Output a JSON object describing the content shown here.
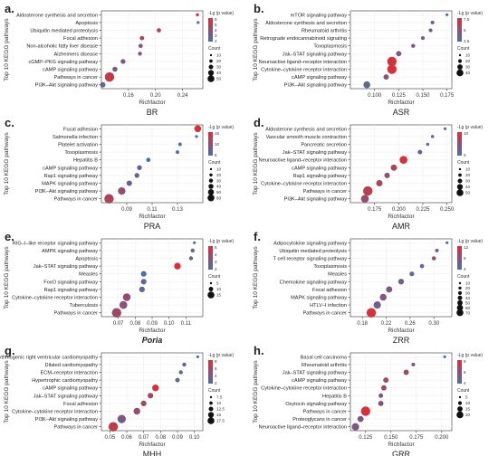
{
  "figure": {
    "shared": {
      "xlabel": "Richfactor",
      "ylabel": "Top 10 KEGG pathways",
      "legend_color_title": "-Lg (p value)",
      "legend_size_title": "Count",
      "color_low": "#4b6fa8",
      "color_high": "#d7303a"
    }
  },
  "chart_data": [
    {
      "type": "scatter",
      "panel_letter": "a.",
      "caption": "BR",
      "caption_italic": false,
      "xlim": [
        0.12,
        0.27
      ],
      "xticks": [
        "0.16",
        "0.20",
        "0.24"
      ],
      "xtick_values": [
        0.16,
        0.2,
        0.24
      ],
      "categories": [
        "Aldosterone synthesis and secretion",
        "Apoptosis",
        "Ubiquitin mediated proteolysis",
        "Focal adhesion",
        "Non-alcoholic fatty liver disease",
        "Alzheimers disease",
        "cGMP–PKG signaling pathway",
        "cAMP signaling pathway",
        "Pathways in cancer",
        "PI3K–Akt signaling pathway"
      ],
      "x": [
        0.262,
        0.263,
        0.205,
        0.18,
        0.178,
        0.177,
        0.152,
        0.14,
        0.132,
        0.122
      ],
      "neglog_p": [
        6.0,
        1.0,
        5.0,
        4.5,
        3.5,
        3.0,
        2.5,
        2.5,
        5.5,
        2.0
      ],
      "count": [
        5,
        3,
        15,
        15,
        15,
        12,
        20,
        22,
        60,
        25
      ],
      "color_ticks": [
        2.0,
        3.0,
        4.0,
        5.0,
        6.0
      ],
      "size_ticks": [
        10,
        20,
        30,
        40,
        50
      ]
    },
    {
      "type": "scatter",
      "panel_letter": "b.",
      "caption": "ASR",
      "caption_italic": false,
      "xlim": [
        0.075,
        0.18
      ],
      "xticks": [
        "0.100",
        "0.125",
        "0.150",
        "0.175"
      ],
      "xtick_values": [
        0.1,
        0.125,
        0.15,
        0.175
      ],
      "categories": [
        "mTOR signaling pathway",
        "Aldosterone synthesis and secretion",
        "Rheumatoid arthritis",
        "Retrograde endocannabinoid signaling",
        "Toxoplasmosis",
        "Jak–STAT signaling pathway",
        "Neuroactive ligand–receptor interaction",
        "Cytokine–cytokine receptor interaction",
        "cAMP signaling pathway",
        "PI3K–Akt signaling pathway"
      ],
      "x": [
        0.175,
        0.16,
        0.158,
        0.15,
        0.14,
        0.125,
        0.118,
        0.118,
        0.112,
        0.092
      ],
      "neglog_p": [
        1.0,
        3.0,
        3.0,
        3.0,
        3.5,
        3.5,
        8.0,
        8.0,
        4.0,
        2.0
      ],
      "count": [
        5,
        10,
        10,
        10,
        12,
        20,
        45,
        45,
        20,
        30
      ],
      "color_ticks": [
        2.5,
        5.0,
        7.5
      ],
      "size_ticks": [
        10,
        20,
        30,
        40
      ]
    },
    {
      "type": "scatter",
      "panel_letter": "c.",
      "caption": "PRA",
      "caption_italic": false,
      "xlim": [
        0.07,
        0.15
      ],
      "xticks": [
        "0.09",
        "0.11",
        "0.13"
      ],
      "xtick_values": [
        0.09,
        0.11,
        0.13
      ],
      "categories": [
        "Focal adhesion",
        "Salmonella infection",
        "Platelet activation",
        "Toxoplasmosis",
        "Hepatitis B",
        "cAMP signaling pathway",
        "Rap1 signaling pathway",
        "MAPK signaling pathway",
        "PI3K–Akt signaling pathway",
        "Pathways in cancer"
      ],
      "x": [
        0.146,
        0.145,
        0.132,
        0.13,
        0.107,
        0.1,
        0.098,
        0.092,
        0.086,
        0.076
      ],
      "neglog_p": [
        15.0,
        5.0,
        5.0,
        5.0,
        5.0,
        7.0,
        7.0,
        7.0,
        10.0,
        12.0
      ],
      "count": [
        40,
        10,
        15,
        15,
        20,
        25,
        25,
        30,
        45,
        60
      ],
      "color_ticks": [
        5,
        10,
        15
      ],
      "size_ticks": [
        10,
        20,
        30,
        40,
        50,
        60
      ]
    },
    {
      "type": "scatter",
      "panel_letter": "d.",
      "caption": "AMR",
      "caption_italic": false,
      "xlim": [
        0.15,
        0.255
      ],
      "xticks": [
        "0.175",
        "0.200",
        "0.225",
        "0.250"
      ],
      "xtick_values": [
        0.175,
        0.2,
        0.225,
        0.25
      ],
      "categories": [
        "Aldosterone synthesis and secretion",
        "Vascular smooth muscle contraction",
        "Pancreatic secretion",
        "Jak–STAT signaling pathway",
        "Neuroactive ligand–receptor interaction",
        "cAMP signaling pathway",
        "Rap1 signaling pathway",
        "Cytokine–cytokine receptor interaction",
        "Pathways in cancer",
        "PI3K–Akt signaling pathway"
      ],
      "x": [
        0.248,
        0.235,
        0.23,
        0.222,
        0.205,
        0.195,
        0.188,
        0.18,
        0.168,
        0.165
      ],
      "neglog_p": [
        5.0,
        6.0,
        3.0,
        5.0,
        12.0,
        9.0,
        7.0,
        9.0,
        10.0,
        8.0
      ],
      "count": [
        8,
        10,
        10,
        18,
        40,
        30,
        25,
        30,
        50,
        40
      ],
      "color_ticks": [
        5,
        10
      ],
      "size_ticks": [
        10,
        20,
        30,
        40,
        50
      ]
    },
    {
      "type": "scatter",
      "panel_letter": "e.",
      "caption": "Poria",
      "caption_italic": true,
      "xlim": [
        0.06,
        0.12
      ],
      "xticks": [
        "0.07",
        "0.08",
        "0.09",
        "0.10",
        "0.11"
      ],
      "xtick_values": [
        0.07,
        0.08,
        0.09,
        0.1,
        0.11
      ],
      "categories": [
        "RIG–I–like receptor signaling pathway",
        "AMPK signaling pathway",
        "Apoptosis",
        "Jak–STAT signaling pathway",
        "Measles",
        "FoxO signaling pathway",
        "Rap1 signaling pathway",
        "Cytokine–cytokine receptor interaction",
        "Tuberculosis",
        "Pathways in cancer"
      ],
      "x": [
        0.115,
        0.114,
        0.113,
        0.105,
        0.085,
        0.085,
        0.084,
        0.075,
        0.073,
        0.069
      ],
      "neglog_p": [
        2.0,
        2.5,
        3.0,
        5.5,
        2.0,
        2.5,
        2.5,
        4.0,
        3.5,
        4.0
      ],
      "count": [
        3,
        5,
        5,
        10,
        8,
        8,
        8,
        12,
        12,
        15
      ],
      "color_ticks": [
        2.0,
        3.0,
        4.0,
        5.0
      ],
      "size_ticks": [
        5,
        10,
        15
      ]
    },
    {
      "type": "scatter",
      "panel_letter": "f.",
      "caption": "ZRR",
      "caption_italic": false,
      "xlim": [
        0.16,
        0.33
      ],
      "xticks": [
        "0.18",
        "0.22",
        "0.26",
        "0.30"
      ],
      "xtick_values": [
        0.18,
        0.22,
        0.26,
        0.3
      ],
      "categories": [
        "Adipocytokine signaling pathway",
        "Ubiquitin mediated proteolysis",
        "T cell receptor signaling pathway",
        "Toxoplasmosis",
        "Measles",
        "Chemokine signaling pathway",
        "Focal adhesion",
        "MAPK signaling pathway",
        "HTLV–I infection",
        "Pathways in cancer"
      ],
      "x": [
        0.322,
        0.305,
        0.3,
        0.28,
        0.263,
        0.245,
        0.225,
        0.215,
        0.205,
        0.195
      ],
      "neglog_p": [
        4.0,
        6.0,
        9.0,
        5.0,
        5.0,
        6.0,
        7.0,
        7.0,
        6.0,
        12.0
      ],
      "count": [
        8,
        15,
        20,
        20,
        25,
        35,
        40,
        45,
        50,
        70
      ],
      "color_ticks": [
        4.0,
        8.0,
        12.0
      ],
      "size_ticks": [
        10,
        20,
        30,
        40,
        50,
        60,
        70
      ]
    },
    {
      "type": "scatter",
      "panel_letter": "g.",
      "caption": "MHH",
      "caption_italic": false,
      "xlim": [
        0.045,
        0.105
      ],
      "xticks": [
        "0.05",
        "0.06",
        "0.07",
        "0.08",
        "0.09",
        "0.10"
      ],
      "xtick_values": [
        0.05,
        0.06,
        0.07,
        0.08,
        0.09,
        0.1
      ],
      "categories": [
        "Arrhythmogenic right ventricular cardiomyopathy",
        "Dilated cardiomyopathy",
        "ECM–receptor interaction",
        "Hypertrophic cardiomyopathy",
        "cAMP signaling pathway",
        "Jak–STAT signaling pathway",
        "Focal adhesion",
        "Cytokine–cytokine receptor interaction",
        "PI3K–Akt signaling pathway",
        "Pathways in cancer"
      ],
      "x": [
        0.102,
        0.094,
        0.092,
        0.09,
        0.077,
        0.074,
        0.07,
        0.066,
        0.057,
        0.052
      ],
      "neglog_p": [
        2.0,
        3.0,
        2.5,
        3.0,
        8.0,
        6.0,
        6.0,
        5.0,
        4.0,
        7.0
      ],
      "count": [
        5,
        7,
        7,
        8,
        12,
        10,
        10,
        12,
        15,
        17
      ],
      "color_ticks": [
        2,
        4,
        6,
        8
      ],
      "size_ticks": [
        7.5,
        10.0,
        12.5,
        15.0,
        17.5
      ]
    },
    {
      "type": "scatter",
      "panel_letter": "h.",
      "caption": "GRR",
      "caption_italic": false,
      "xlim": [
        0.11,
        0.21
      ],
      "xticks": [
        "0.125",
        "0.150",
        "0.175",
        "0.200"
      ],
      "xtick_values": [
        0.125,
        0.15,
        0.175,
        0.2
      ],
      "categories": [
        "Basal cell carcinoma",
        "Rheumatoid arthritis",
        "Jak–STAT signaling pathway",
        "cAMP signaling pathway",
        "Cytokine–cytokine receptor interaction",
        "Hepatitis B",
        "Oxytocin signaling pathway",
        "Pathways in cancer",
        "Proteoglycans in cancer",
        "Neuroactive ligand–receptor interaction"
      ],
      "x": [
        0.203,
        0.172,
        0.165,
        0.145,
        0.143,
        0.14,
        0.14,
        0.125,
        0.12,
        0.115
      ],
      "neglog_p": [
        2.0,
        5.0,
        7.0,
        7.0,
        7.0,
        5.0,
        6.0,
        10.0,
        5.0,
        5.0
      ],
      "count": [
        4,
        6,
        10,
        10,
        10,
        8,
        10,
        20,
        12,
        15
      ],
      "color_ticks": [
        4,
        6,
        8
      ],
      "size_ticks": [
        5,
        10,
        15,
        20
      ]
    }
  ]
}
